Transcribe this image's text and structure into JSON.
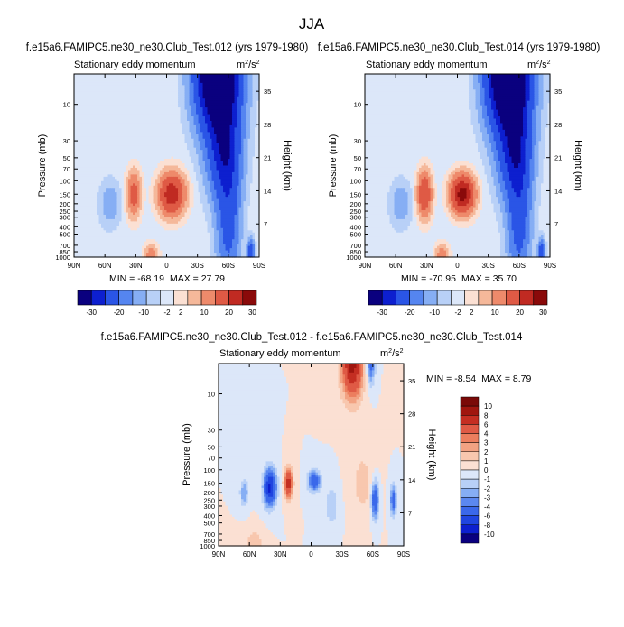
{
  "figure_title": "JJA",
  "chart_data": [
    {
      "type": "heatmap",
      "title": "f.e15a6.FAMIPC5.ne30_ne30.Club_Test.012 (yrs 1979-1980)",
      "subtitle": "Stationary eddy momentum",
      "units_base": "m",
      "units_exp_num": "2",
      "units_exp_den": "s",
      "units_exp_den_pow": "2",
      "xlabel": "",
      "ylabel": "Pressure (mb)",
      "y2label": "Height (km)",
      "x_ticks": [
        {
          "v": -90,
          "label": "90N"
        },
        {
          "v": -60,
          "label": "60N"
        },
        {
          "v": -30,
          "label": "30N"
        },
        {
          "v": 0,
          "label": "0"
        },
        {
          "v": 30,
          "label": "30S"
        },
        {
          "v": 60,
          "label": "60S"
        },
        {
          "v": 90,
          "label": "90S"
        }
      ],
      "y_ticks": [
        10,
        30,
        50,
        70,
        100,
        150,
        200,
        250,
        300,
        400,
        500,
        700,
        850,
        1000
      ],
      "y2_ticks": [
        {
          "km": 35,
          "label": "35"
        },
        {
          "km": 28,
          "label": "28"
        },
        {
          "km": 21,
          "label": "21"
        },
        {
          "km": 14,
          "label": "14"
        },
        {
          "km": 7,
          "label": "7"
        }
      ],
      "xlim": [
        -90,
        90
      ],
      "ylim_mb": [
        4,
        1000
      ],
      "stats": {
        "min_label": "MIN =",
        "min": "-68.19",
        "max_label": "MAX =",
        "max": "27.79"
      },
      "features": [
        {
          "lat": 50,
          "p": 4,
          "amp": -68,
          "wx": 18,
          "wy": 1.5
        },
        {
          "lat": 56,
          "p": 40,
          "amp": -25,
          "wx": 14,
          "wy": 1.3
        },
        {
          "lat": 60,
          "p": 300,
          "amp": -14,
          "wx": 10,
          "wy": 1.8
        },
        {
          "lat": 5,
          "p": 150,
          "amp": 27.8,
          "wx": 11,
          "wy": 0.55
        },
        {
          "lat": -32,
          "p": 150,
          "amp": 14,
          "wx": 6,
          "wy": 0.6
        },
        {
          "lat": -55,
          "p": 200,
          "amp": -4,
          "wx": 9,
          "wy": 0.6
        },
        {
          "lat": -15,
          "p": 950,
          "amp": 8,
          "wx": 6,
          "wy": 0.3
        },
        {
          "lat": 82,
          "p": 900,
          "amp": -20,
          "wx": 3,
          "wy": 0.35
        }
      ],
      "colorbar": {
        "levels": [
          "-30",
          "-20",
          "-10",
          "-2",
          "2",
          "10",
          "20",
          "30"
        ]
      }
    },
    {
      "type": "heatmap",
      "title": "f.e15a6.FAMIPC5.ne30_ne30.Club_Test.014 (yrs 1979-1980)",
      "subtitle": "Stationary eddy momentum",
      "units_base": "m",
      "units_exp_num": "2",
      "units_exp_den": "s",
      "units_exp_den_pow": "2",
      "xlabel": "",
      "ylabel": "Pressure (mb)",
      "y2label": "Height (km)",
      "x_ticks": [
        {
          "v": -90,
          "label": "90N"
        },
        {
          "v": -60,
          "label": "60N"
        },
        {
          "v": -30,
          "label": "30N"
        },
        {
          "v": 0,
          "label": "0"
        },
        {
          "v": 30,
          "label": "30S"
        },
        {
          "v": 60,
          "label": "60S"
        },
        {
          "v": 90,
          "label": "90S"
        }
      ],
      "y_ticks": [
        10,
        30,
        50,
        70,
        100,
        150,
        200,
        250,
        300,
        400,
        500,
        700,
        850,
        1000
      ],
      "y2_ticks": [
        {
          "km": 35,
          "label": "35"
        },
        {
          "km": 28,
          "label": "28"
        },
        {
          "km": 21,
          "label": "21"
        },
        {
          "km": 14,
          "label": "14"
        },
        {
          "km": 7,
          "label": "7"
        }
      ],
      "xlim": [
        -90,
        90
      ],
      "ylim_mb": [
        4,
        1000
      ],
      "stats": {
        "min_label": "MIN =",
        "min": "-70.95",
        "max_label": "MAX =",
        "max": "35.70"
      },
      "features": [
        {
          "lat": 50,
          "p": 4,
          "amp": -71,
          "wx": 18,
          "wy": 1.5
        },
        {
          "lat": 56,
          "p": 40,
          "amp": -26,
          "wx": 14,
          "wy": 1.3
        },
        {
          "lat": 60,
          "p": 300,
          "amp": -14,
          "wx": 10,
          "wy": 1.8
        },
        {
          "lat": 5,
          "p": 150,
          "amp": 35.7,
          "wx": 10,
          "wy": 0.5
        },
        {
          "lat": -32,
          "p": 150,
          "amp": 20,
          "wx": 6,
          "wy": 0.6
        },
        {
          "lat": -55,
          "p": 200,
          "amp": -4,
          "wx": 9,
          "wy": 0.6
        },
        {
          "lat": -15,
          "p": 950,
          "amp": 8,
          "wx": 6,
          "wy": 0.3
        },
        {
          "lat": 82,
          "p": 900,
          "amp": -20,
          "wx": 3,
          "wy": 0.35
        }
      ],
      "colorbar": {
        "levels": [
          "-30",
          "-20",
          "-10",
          "-2",
          "2",
          "10",
          "20",
          "30"
        ]
      }
    },
    {
      "type": "heatmap",
      "title": "f.e15a6.FAMIPC5.ne30_ne30.Club_Test.012 - f.e15a6.FAMIPC5.ne30_ne30.Club_Test.014",
      "subtitle": "Stationary eddy momentum",
      "units_base": "m",
      "units_exp_num": "2",
      "units_exp_den": "s",
      "units_exp_den_pow": "2",
      "xlabel": "",
      "ylabel": "Pressure (mb)",
      "y2label": "Height (km)",
      "x_ticks": [
        {
          "v": -90,
          "label": "90N"
        },
        {
          "v": -60,
          "label": "60N"
        },
        {
          "v": -30,
          "label": "30N"
        },
        {
          "v": 0,
          "label": "0"
        },
        {
          "v": 30,
          "label": "30S"
        },
        {
          "v": 60,
          "label": "60S"
        },
        {
          "v": 90,
          "label": "90S"
        }
      ],
      "y_ticks": [
        10,
        30,
        50,
        70,
        100,
        150,
        200,
        250,
        300,
        400,
        500,
        700,
        850,
        1000
      ],
      "y2_ticks": [
        {
          "km": 35,
          "label": "35"
        },
        {
          "km": 28,
          "label": "28"
        },
        {
          "km": 21,
          "label": "21"
        },
        {
          "km": 14,
          "label": "14"
        },
        {
          "km": 7,
          "label": "7"
        }
      ],
      "xlim": [
        -90,
        90
      ],
      "ylim_mb": [
        4,
        1000
      ],
      "stats": {
        "min_label": "MIN =",
        "min": "-8.54",
        "max_label": "MAX =",
        "max": "8.79"
      },
      "features": [
        {
          "lat": 40,
          "p": 4,
          "amp": 8.8,
          "wx": 10,
          "wy": 1.0
        },
        {
          "lat": 58,
          "p": 4,
          "amp": -5,
          "wx": 4,
          "wy": 0.6
        },
        {
          "lat": -40,
          "p": 170,
          "amp": -8.5,
          "wx": 6,
          "wy": 0.55
        },
        {
          "lat": -22,
          "p": 150,
          "amp": 7,
          "wx": 4,
          "wy": 0.45
        },
        {
          "lat": 3,
          "p": 140,
          "amp": -6,
          "wx": 6,
          "wy": 0.3
        },
        {
          "lat": 62,
          "p": 250,
          "amp": -6,
          "wx": 3.5,
          "wy": 0.55
        },
        {
          "lat": 80,
          "p": 250,
          "amp": -5,
          "wx": 3,
          "wy": 0.45
        },
        {
          "lat": -65,
          "p": 200,
          "amp": -3,
          "wx": 4,
          "wy": 0.4
        },
        {
          "lat": 20,
          "p": 300,
          "amp": -2,
          "wx": 6,
          "wy": 0.6
        },
        {
          "lat": -55,
          "p": 900,
          "amp": 1.8,
          "wx": 8,
          "wy": 0.4
        },
        {
          "lat": 50,
          "p": 150,
          "amp": 1.5,
          "wx": 10,
          "wy": 1.0
        }
      ],
      "colorbar": {
        "levels": [
          "10",
          "8",
          "6",
          "4",
          "3",
          "2",
          "1",
          "0",
          "-1",
          "-2",
          "-3",
          "-4",
          "-6",
          "-8",
          "-10"
        ]
      }
    }
  ],
  "palettes": {
    "full": [
      "#0a007f",
      "#0d1fcf",
      "#2a55e6",
      "#5585f0",
      "#86aef4",
      "#b8d0f7",
      "#dce7f9",
      "#fbe0d3",
      "#f5b89a",
      "#ee8a6b",
      "#df5a45",
      "#c02a22",
      "#8a0a0a"
    ],
    "diff": [
      "#0a007f",
      "#0d1fcf",
      "#1f45e0",
      "#3a68ea",
      "#5b88f0",
      "#86aef4",
      "#b8d0f7",
      "#dce7f9",
      "#fbe0d3",
      "#f8c7ae",
      "#f2a282",
      "#ec7e5e",
      "#df5a45",
      "#c42e22",
      "#a0160f",
      "#7a0a08"
    ]
  }
}
